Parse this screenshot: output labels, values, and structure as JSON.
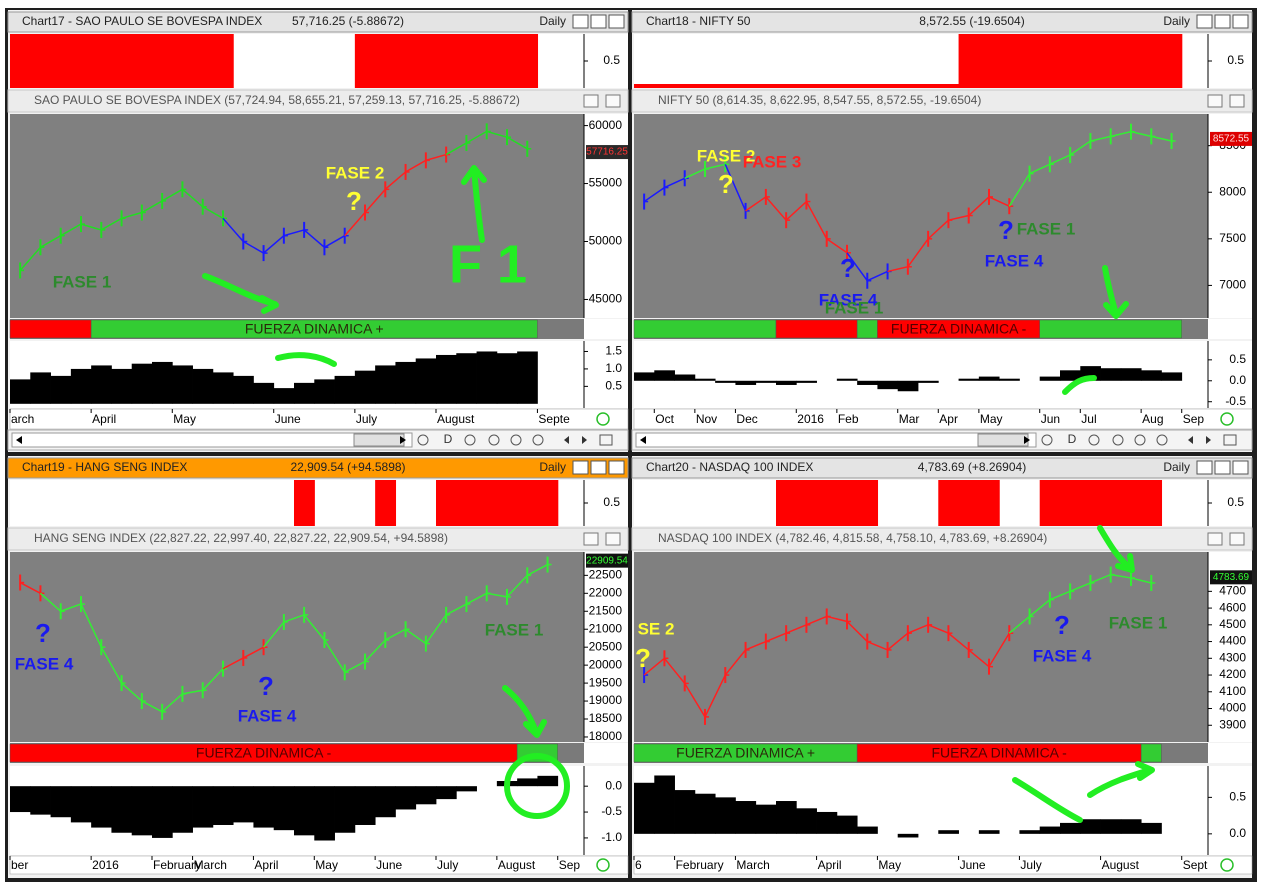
{
  "chart_data": [
    {
      "type": "price",
      "title": "Chart17 - SAO PAULO SE BOVESPA INDEX",
      "quote": "57,716.25 (-5.88672)",
      "period": "Daily",
      "header_color": "#e4e4e4",
      "subtitle": "SAO PAULO SE BOVESPA INDEX (57,724.94, 58,655.21, 57,259.13, 57,716.25, -5.88672)",
      "toolbar": "D",
      "categories": [
        "arch",
        null,
        null,
        null,
        "April",
        null,
        null,
        null,
        "May",
        null,
        null,
        null,
        null,
        "June",
        null,
        null,
        null,
        "July",
        null,
        null,
        null,
        "August",
        null,
        null,
        null,
        null,
        "Septe",
        null
      ],
      "series": [
        {
          "color": "#22dd22",
          "values": [
            47500,
            49500,
            50500,
            51500,
            51000,
            52000,
            52500,
            53500,
            54500,
            53000,
            52000,
            null,
            null,
            null,
            null,
            null,
            null,
            null,
            null,
            null,
            null,
            null,
            null,
            null,
            null,
            null,
            null,
            null
          ]
        },
        {
          "color": "#1a1aff",
          "values": [
            null,
            null,
            null,
            null,
            null,
            null,
            null,
            null,
            null,
            null,
            null,
            50000,
            49000,
            50500,
            51000,
            49500,
            50500,
            null,
            null,
            null,
            null,
            null,
            null,
            null,
            null,
            null,
            null,
            null
          ]
        },
        {
          "color": "#ff2020",
          "values": [
            null,
            null,
            null,
            null,
            null,
            null,
            null,
            null,
            null,
            null,
            null,
            null,
            null,
            null,
            null,
            null,
            null,
            52500,
            54500,
            56000,
            57000,
            57500,
            null,
            null,
            null,
            null,
            null,
            null
          ]
        },
        {
          "color": "#22dd22",
          "values": [
            null,
            null,
            null,
            null,
            null,
            null,
            null,
            null,
            null,
            null,
            null,
            null,
            null,
            null,
            null,
            null,
            null,
            null,
            null,
            null,
            null,
            null,
            58500,
            59500,
            59000,
            58000,
            null,
            null
          ]
        }
      ],
      "ylim": [
        43400,
        61000
      ],
      "yticks": [
        60000,
        55000,
        50000,
        45000
      ],
      "last": 57716.25,
      "last_color": "#ff3333",
      "last_bg": "#2a2a2a",
      "signal": {
        "color": "#ff0000",
        "baseline": false,
        "ylim": [
          0,
          1
        ],
        "yticks": [
          0.5
        ],
        "values": [
          1,
          1,
          1,
          1,
          1,
          1,
          1,
          1,
          1,
          1,
          1,
          0,
          0,
          0,
          0,
          0,
          0,
          1,
          1,
          1,
          1,
          1,
          1,
          1,
          1,
          1,
          null,
          null
        ]
      },
      "fuerza": [
        {
          "color": "#ff0000",
          "span": 4
        },
        {
          "color": "#33cc33",
          "span": 22,
          "label": "FUERZA DINAMICA +"
        }
      ],
      "indicator": {
        "color": "#000000",
        "ylim": [
          -0.12,
          1.8
        ],
        "yticks": [
          1.5,
          {
            "value": 1,
            "label": "1.0"
          },
          0.5
        ],
        "values": [
          0.7,
          0.9,
          0.8,
          1.0,
          1.1,
          1.0,
          1.15,
          1.2,
          1.1,
          1.0,
          0.9,
          0.8,
          0.6,
          0.45,
          0.6,
          0.7,
          0.8,
          0.95,
          1.1,
          1.2,
          1.3,
          1.4,
          1.45,
          1.5,
          1.45,
          1.5,
          null,
          null
        ]
      },
      "annotations": [
        {
          "text": "FASE 1",
          "color": "#2d8a2d"
        },
        {
          "text": "FASE 2",
          "color": "#ffff33"
        },
        {
          "text": "?",
          "color": "#ffff33"
        },
        {
          "text": "F 1",
          "color": "#22ee22"
        }
      ]
    },
    {
      "type": "price",
      "title": "Chart18 - NIFTY 50",
      "quote": "8,572.55 (-19.6504)",
      "period": "Daily",
      "header_color": "#e4e4e4",
      "subtitle": "NIFTY 50 (8,614.35, 8,622.95, 8,547.55, 8,572.55, -19.6504)",
      "toolbar": "D",
      "categories": [
        null,
        "Oct",
        null,
        "Nov",
        null,
        "Dec",
        null,
        null,
        "2016",
        null,
        "Feb",
        null,
        null,
        "Mar",
        null,
        "Apr",
        null,
        "May",
        null,
        null,
        "Jun",
        null,
        "Jul",
        null,
        null,
        "Aug",
        null,
        "Sep"
      ],
      "series": [
        {
          "color": "#1a1aff",
          "values": [
            7900,
            8050,
            8150,
            null,
            null,
            7800,
            null,
            null,
            null,
            null,
            null,
            7050,
            7150,
            null,
            null,
            null,
            null,
            null,
            null,
            null,
            null,
            null,
            null,
            null,
            null,
            null,
            null,
            null
          ]
        },
        {
          "color": "#33ee33",
          "values": [
            null,
            null,
            null,
            8250,
            8300,
            null,
            null,
            null,
            null,
            null,
            null,
            null,
            null,
            null,
            null,
            null,
            null,
            null,
            null,
            8200,
            8300,
            8400,
            8550,
            8600,
            8650,
            8600,
            8550,
            null
          ]
        },
        {
          "color": "#ff2020",
          "values": [
            null,
            null,
            null,
            null,
            null,
            null,
            7950,
            7700,
            7900,
            7500,
            7350,
            null,
            null,
            7200,
            7500,
            7700,
            7750,
            7950,
            7850,
            null,
            null,
            null,
            null,
            null,
            null,
            null,
            null,
            null
          ]
        }
      ],
      "ylim": [
        6650,
        8840
      ],
      "yticks": [
        8500,
        8000,
        7500,
        7000
      ],
      "last": 8572.55,
      "last_color": "#ffdddd",
      "last_bg": "#dd0000",
      "signal": {
        "color": "#ff0000",
        "baseline": true,
        "ylim": [
          0,
          1
        ],
        "yticks": [
          0.5
        ],
        "values": [
          0,
          0,
          0,
          0,
          0,
          0,
          0,
          0,
          0,
          0,
          0,
          0,
          0,
          0,
          0,
          0,
          1,
          1,
          1,
          1,
          1,
          1,
          1,
          1,
          1,
          1,
          1,
          null
        ]
      },
      "fuerza": [
        {
          "color": "#33cc33",
          "span": 7
        },
        {
          "color": "#ff0000",
          "span": 4
        },
        {
          "color": "#33cc33",
          "span": 1
        },
        {
          "color": "#ff0000",
          "span": 8,
          "label": "FUERZA DINAMICA -"
        },
        {
          "color": "#33cc33",
          "span": 7
        }
      ],
      "indicator": {
        "color": "#000000",
        "ylim": [
          -0.65,
          0.95
        ],
        "yticks": [
          0.5,
          {
            "value": 0,
            "label": "0.0"
          },
          -0.5
        ],
        "values": [
          0.2,
          0.25,
          0.15,
          0.05,
          -0.05,
          -0.1,
          -0.05,
          -0.1,
          -0.05,
          0.0,
          0.05,
          -0.1,
          -0.2,
          -0.25,
          -0.05,
          0.0,
          0.05,
          0.1,
          0.05,
          0.0,
          0.1,
          0.25,
          0.35,
          0.3,
          0.3,
          0.25,
          0.2,
          null
        ]
      },
      "annotations": [
        {
          "text": "FASE 2",
          "color": "#ffff33"
        },
        {
          "text": "?",
          "color": "#ffff33"
        },
        {
          "text": "FASE 3",
          "color": "#ff2222"
        },
        {
          "text": "?",
          "color": "#1a1aee"
        },
        {
          "text": "FASE 4",
          "color": "#1a1aee"
        },
        {
          "text": "FASE 1",
          "color": "#2d8a2d"
        },
        {
          "text": "?",
          "color": "#1a1aee"
        },
        {
          "text": "FASE 4",
          "color": "#1a1aee"
        },
        {
          "text": "FASE 1",
          "color": "#2d8a2d"
        }
      ]
    },
    {
      "type": "price",
      "title": "Chart19 - HANG SENG INDEX",
      "quote": "22,909.54 (+94.5898)",
      "period": "Daily",
      "header_color": "#ff9900",
      "subtitle": "HANG SENG INDEX (22,827.22, 22,997.40, 22,827.22, 22,909.54, +94.5898)",
      "categories": [
        "ber",
        null,
        null,
        null,
        "2016",
        null,
        null,
        "February",
        null,
        "March",
        null,
        null,
        "April",
        null,
        null,
        "May",
        null,
        null,
        "June",
        null,
        null,
        "July",
        null,
        null,
        "August",
        null,
        null,
        "Sep"
      ],
      "series": [
        {
          "color": "#ff2020",
          "values": [
            22300,
            22000,
            null,
            null,
            null,
            null,
            null,
            null,
            null,
            null,
            null,
            20200,
            20500,
            null,
            null,
            null,
            null,
            null,
            null,
            null,
            null,
            null,
            null,
            null,
            null,
            null,
            null,
            null
          ]
        },
        {
          "color": "#33ee33",
          "values": [
            null,
            null,
            21500,
            21700,
            20500,
            19500,
            19000,
            18700,
            19200,
            19300,
            19900,
            null,
            null,
            21200,
            21400,
            20700,
            19800,
            20100,
            20700,
            21000,
            20600,
            21400,
            21700,
            22000,
            21900,
            22500,
            22800,
            null
          ]
        }
      ],
      "ylim": [
        17860,
        23150
      ],
      "yticks": [
        22500,
        22000,
        21500,
        21000,
        20500,
        20000,
        19500,
        19000,
        18500,
        18000
      ],
      "last": 22909.54,
      "last_color": "#33ff33",
      "last_bg": "#111111",
      "signal": {
        "color": "#ff0000",
        "baseline": false,
        "ylim": [
          0,
          1
        ],
        "yticks": [
          0.5
        ],
        "values": [
          0,
          0,
          0,
          0,
          0,
          0,
          0,
          0,
          0,
          0,
          0,
          0,
          0,
          0,
          1,
          0,
          0,
          0,
          1,
          0,
          0,
          1,
          1,
          1,
          1,
          1,
          1,
          null
        ]
      },
      "fuerza": [
        {
          "color": "#ff0000",
          "span": 25,
          "label": "FUERZA DINAMICA -"
        },
        {
          "color": "#33cc33",
          "span": 2
        }
      ],
      "indicator": {
        "color": "#000000",
        "ylim": [
          -1.33,
          0.39
        ],
        "yticks": [
          {
            "value": 0,
            "label": "0.0"
          },
          -0.5,
          {
            "value": -1,
            "label": "-1.0"
          }
        ],
        "values": [
          -0.5,
          -0.55,
          -0.6,
          -0.7,
          -0.8,
          -0.9,
          -0.95,
          -1.0,
          -0.9,
          -0.8,
          -0.75,
          -0.7,
          -0.8,
          -0.85,
          -0.95,
          -1.05,
          -0.9,
          -0.75,
          -0.6,
          -0.45,
          -0.35,
          -0.25,
          -0.1,
          0.0,
          0.1,
          0.15,
          0.2,
          null
        ]
      },
      "annotations": [
        {
          "text": "?",
          "color": "#1a1aee"
        },
        {
          "text": "FASE 4",
          "color": "#1a1aee"
        },
        {
          "text": "?",
          "color": "#1a1aee"
        },
        {
          "text": "FASE 4",
          "color": "#1a1aee"
        },
        {
          "text": "FASE 1",
          "color": "#2d8a2d"
        }
      ]
    },
    {
      "type": "price",
      "title": "Chart20 - NASDAQ 100 INDEX",
      "quote": "4,783.69 (+8.26904)",
      "period": "Daily",
      "header_color": "#e4e4e4",
      "subtitle": "NASDAQ 100 INDEX (4,782.46, 4,815.58, 4,758.10, 4,783.69, +8.26904)",
      "categories": [
        "6",
        null,
        "February",
        null,
        null,
        "March",
        null,
        null,
        null,
        "April",
        null,
        null,
        "May",
        null,
        null,
        null,
        "June",
        null,
        null,
        "July",
        null,
        null,
        null,
        "August",
        null,
        null,
        null,
        "Sept"
      ],
      "series": [
        {
          "color": "#1a1aff",
          "values": [
            4200,
            null,
            null,
            null,
            null,
            null,
            null,
            null,
            null,
            null,
            null,
            null,
            null,
            null,
            null,
            null,
            null,
            null,
            null,
            null,
            null,
            null,
            null,
            null,
            null,
            null,
            null,
            null
          ]
        },
        {
          "color": "#ff2020",
          "values": [
            null,
            4300,
            4150,
            3950,
            4200,
            4350,
            4400,
            4450,
            4500,
            4550,
            4520,
            4400,
            4350,
            4450,
            4500,
            4450,
            4350,
            4250,
            4450,
            null,
            null,
            null,
            null,
            null,
            null,
            null,
            null,
            null
          ]
        },
        {
          "color": "#33ee33",
          "values": [
            null,
            null,
            null,
            null,
            null,
            null,
            null,
            null,
            null,
            null,
            null,
            null,
            null,
            null,
            null,
            null,
            null,
            null,
            null,
            4550,
            4650,
            4700,
            4750,
            4800,
            4780,
            4750,
            null,
            null
          ]
        }
      ],
      "ylim": [
        3800,
        4935
      ],
      "yticks": [
        4700,
        4600,
        4500,
        4400,
        4300,
        4200,
        4100,
        4000,
        3900
      ],
      "last": 4783.69,
      "last_color": "#33ff33",
      "last_bg": "#111111",
      "signal": {
        "color": "#ff0000",
        "baseline": false,
        "ylim": [
          0,
          1
        ],
        "yticks": [
          0.5
        ],
        "values": [
          0,
          0,
          0,
          0,
          0,
          0,
          0,
          1,
          1,
          1,
          1,
          1,
          0,
          0,
          0,
          1,
          1,
          1,
          0,
          0,
          1,
          1,
          1,
          1,
          1,
          1,
          null,
          null
        ]
      },
      "fuerza": [
        {
          "color": "#33cc33",
          "span": 11,
          "label": "FUERZA DINAMICA +"
        },
        {
          "color": "#ff0000",
          "span": 14,
          "label": "FUERZA DINAMICA -"
        },
        {
          "color": "#33cc33",
          "span": 1
        }
      ],
      "indicator": {
        "color": "#000000",
        "ylim": [
          -0.29,
          0.93
        ],
        "yticks": [
          0.5,
          {
            "value": 0,
            "label": "0.0"
          }
        ],
        "values": [
          0.7,
          0.8,
          0.6,
          0.55,
          0.5,
          0.45,
          0.4,
          0.45,
          0.35,
          0.3,
          0.25,
          0.1,
          0.0,
          -0.05,
          0.0,
          0.05,
          0.0,
          0.05,
          0.0,
          0.05,
          0.1,
          0.15,
          0.2,
          0.2,
          0.2,
          0.15,
          null,
          null
        ]
      },
      "annotations": [
        {
          "text": "SE 2",
          "color": "#ffff33"
        },
        {
          "text": "?",
          "color": "#ffff33"
        },
        {
          "text": "?",
          "color": "#1a1aee"
        },
        {
          "text": "FASE 4",
          "color": "#1a1aee"
        },
        {
          "text": "FASE 1",
          "color": "#2d8a2d"
        }
      ]
    }
  ]
}
